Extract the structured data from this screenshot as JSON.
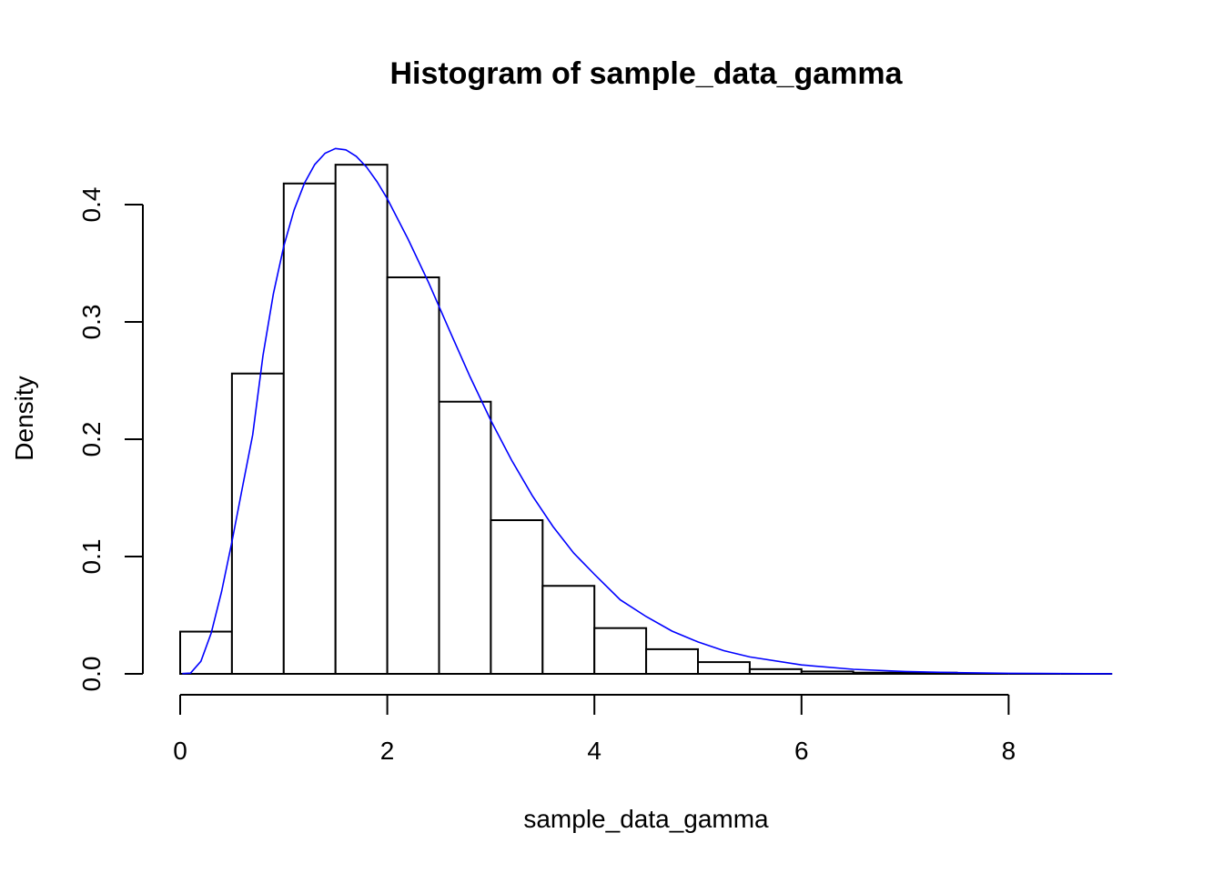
{
  "chart_data": {
    "type": "bar",
    "title": "Histogram of sample_data_gamma",
    "xlabel": "sample_data_gamma",
    "ylabel": "Density",
    "bin_edges": [
      0,
      0.5,
      1,
      1.5,
      2,
      2.5,
      3,
      3.5,
      4,
      4.5,
      5,
      5.5,
      6,
      6.5,
      7,
      7.5,
      8,
      8.5,
      9
    ],
    "densities": [
      0.036,
      0.256,
      0.418,
      0.434,
      0.338,
      0.232,
      0.131,
      0.075,
      0.039,
      0.021,
      0.01,
      0.004,
      0.002,
      0.001,
      0.001,
      0.0,
      0.0,
      0.0
    ],
    "xlim": [
      0,
      9
    ],
    "ylim": [
      0,
      0.45
    ],
    "x_ticks": [
      0,
      2,
      4,
      6,
      8
    ],
    "x_tick_labels": [
      "0",
      "2",
      "4",
      "6",
      "8"
    ],
    "y_ticks": [
      0,
      0.1,
      0.2,
      0.3,
      0.4
    ],
    "y_tick_labels": [
      "0.0",
      "0.1",
      "0.2",
      "0.3",
      "0.4"
    ],
    "overlay_curve": {
      "type": "line",
      "color": "#0000ff",
      "x": [
        0.02,
        0.1,
        0.2,
        0.3,
        0.4,
        0.5,
        0.6,
        0.7,
        0.8,
        0.9,
        1.0,
        1.1,
        1.2,
        1.3,
        1.4,
        1.5,
        1.6,
        1.7,
        1.8,
        1.9,
        2.0,
        2.2,
        2.4,
        2.6,
        2.8,
        3.0,
        3.2,
        3.4,
        3.6,
        3.8,
        4.0,
        4.25,
        4.5,
        4.75,
        5.0,
        5.25,
        5.5,
        6.0,
        6.5,
        7.0,
        7.5,
        8.0,
        8.5,
        9.0
      ],
      "y": [
        0.0002,
        0.0006,
        0.0107,
        0.0347,
        0.0701,
        0.1127,
        0.1585,
        0.2038,
        0.2713,
        0.3239,
        0.3644,
        0.3954,
        0.4183,
        0.4342,
        0.4438,
        0.4478,
        0.4467,
        0.4412,
        0.432,
        0.4197,
        0.405,
        0.3706,
        0.3334,
        0.2929,
        0.2532,
        0.216,
        0.1822,
        0.152,
        0.1256,
        0.103,
        0.0849,
        0.0631,
        0.0488,
        0.0364,
        0.0272,
        0.0198,
        0.0144,
        0.0076,
        0.0039,
        0.002,
        0.001,
        0.0005,
        0.0002,
        0.0001
      ]
    }
  }
}
